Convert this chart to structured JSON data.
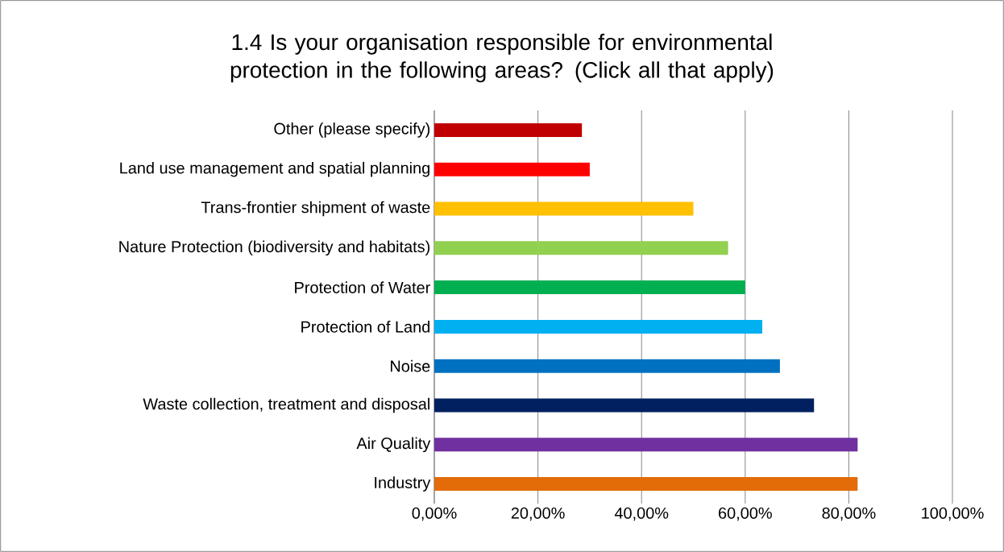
{
  "chart_data": {
    "type": "bar",
    "orientation": "horizontal",
    "title": "1.4 Is your organisation responsible for environmental protection in the following areas? (Click all that apply)",
    "categories": [
      "Other (please specify)",
      "Land use management and spatial planning",
      "Trans-frontier shipment of waste",
      "Nature Protection (biodiversity and habitats)",
      "Protection of Water",
      "Protection of Land",
      "Noise",
      "Waste collection, treatment and disposal",
      "Air Quality",
      "Industry"
    ],
    "values": [
      28.5,
      30.0,
      50.0,
      56.7,
      60.0,
      63.3,
      66.7,
      73.3,
      81.7,
      81.7
    ],
    "colors": [
      "#c00000",
      "#ff0000",
      "#ffc000",
      "#92d050",
      "#00b050",
      "#00b0f0",
      "#0070c0",
      "#002060",
      "#7030a0",
      "#e36c09"
    ],
    "xlim": [
      0,
      100
    ],
    "xticks": [
      {
        "value": 0,
        "label": "0,00%"
      },
      {
        "value": 20,
        "label": "20,00%"
      },
      {
        "value": 40,
        "label": "40,00%"
      },
      {
        "value": 60,
        "label": "60,00%"
      },
      {
        "value": 80,
        "label": "80,00%"
      },
      {
        "value": 100,
        "label": "100,00%"
      }
    ],
    "grid": "x"
  }
}
